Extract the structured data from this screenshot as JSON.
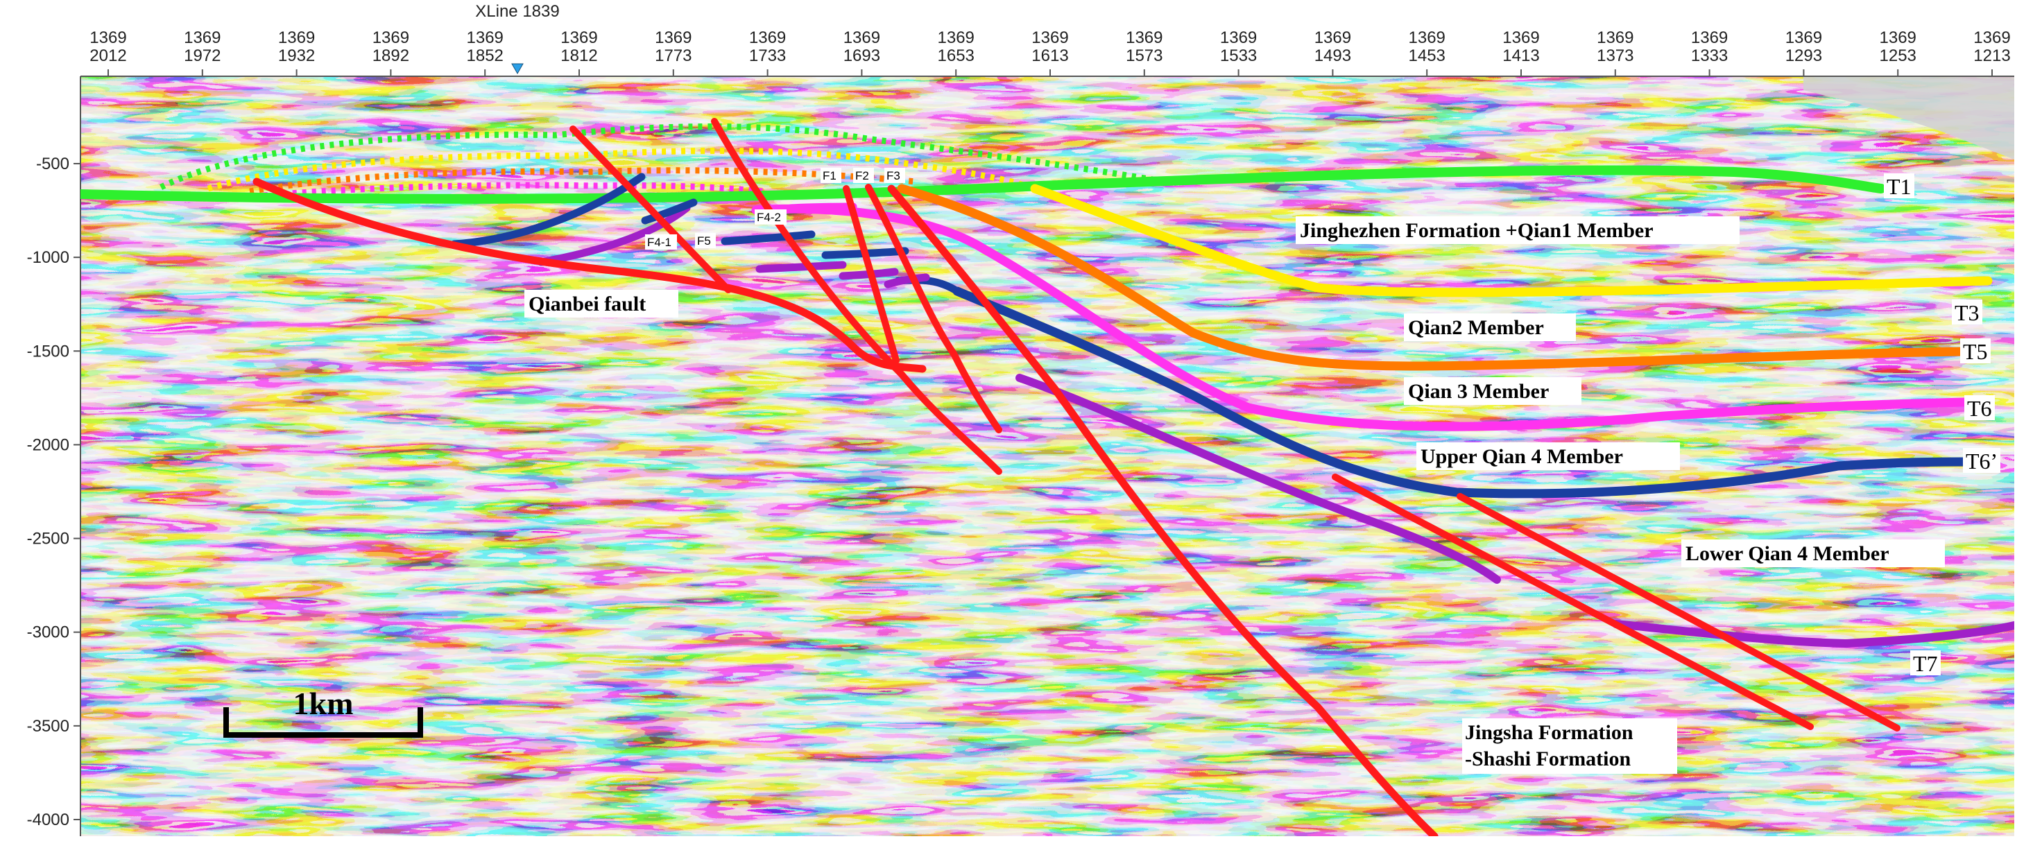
{
  "axis": {
    "inline": "1369",
    "xlines": [
      "2012",
      "1972",
      "1932",
      "1892",
      "1852",
      "1812",
      "1773",
      "1733",
      "1693",
      "1653",
      "1613",
      "1573",
      "1533",
      "1493",
      "1453",
      "1413",
      "1373",
      "1333",
      "1293",
      "1253",
      "1213"
    ],
    "marker_label": "XLine 1839",
    "depth_ticks": [
      "-500",
      "-1000",
      "-1500",
      "-2000",
      "-2500",
      "-3000",
      "-3500",
      "-4000"
    ]
  },
  "colors": {
    "T1": "#2ef02e",
    "T3": "#ffee00",
    "T5": "#ff7a00",
    "T6": "#ff33ee",
    "T6p": "#1a3fa0",
    "T7": "#a020c8",
    "fault": "#ff1a1a",
    "marker": "#2aa0e8"
  },
  "horizon_labels": {
    "T1": "T1",
    "T3": "T3",
    "T5": "T5",
    "T6": "T6",
    "T6p": "T6’",
    "T7": "T7"
  },
  "unit_labels": {
    "jinghezhen": "Jinghezhen Formation +Qian1 Member",
    "qian2": "Qian2 Member",
    "qian3": "Qian 3 Member",
    "upper_qian4": "Upper  Qian 4 Member",
    "lower_qian4": "Lower  Qian 4 Member",
    "jingsha_1": "Jingsha Formation",
    "jingsha_2": "-Shashi Formation",
    "qianbei": "Qianbei fault"
  },
  "fault_labels": {
    "F1": "F1",
    "F2": "F2",
    "F3": "F3",
    "F4_1": "F4-1",
    "F4_2": "F4-2",
    "F5": "F5"
  },
  "scale_bar": {
    "label": "1km"
  }
}
